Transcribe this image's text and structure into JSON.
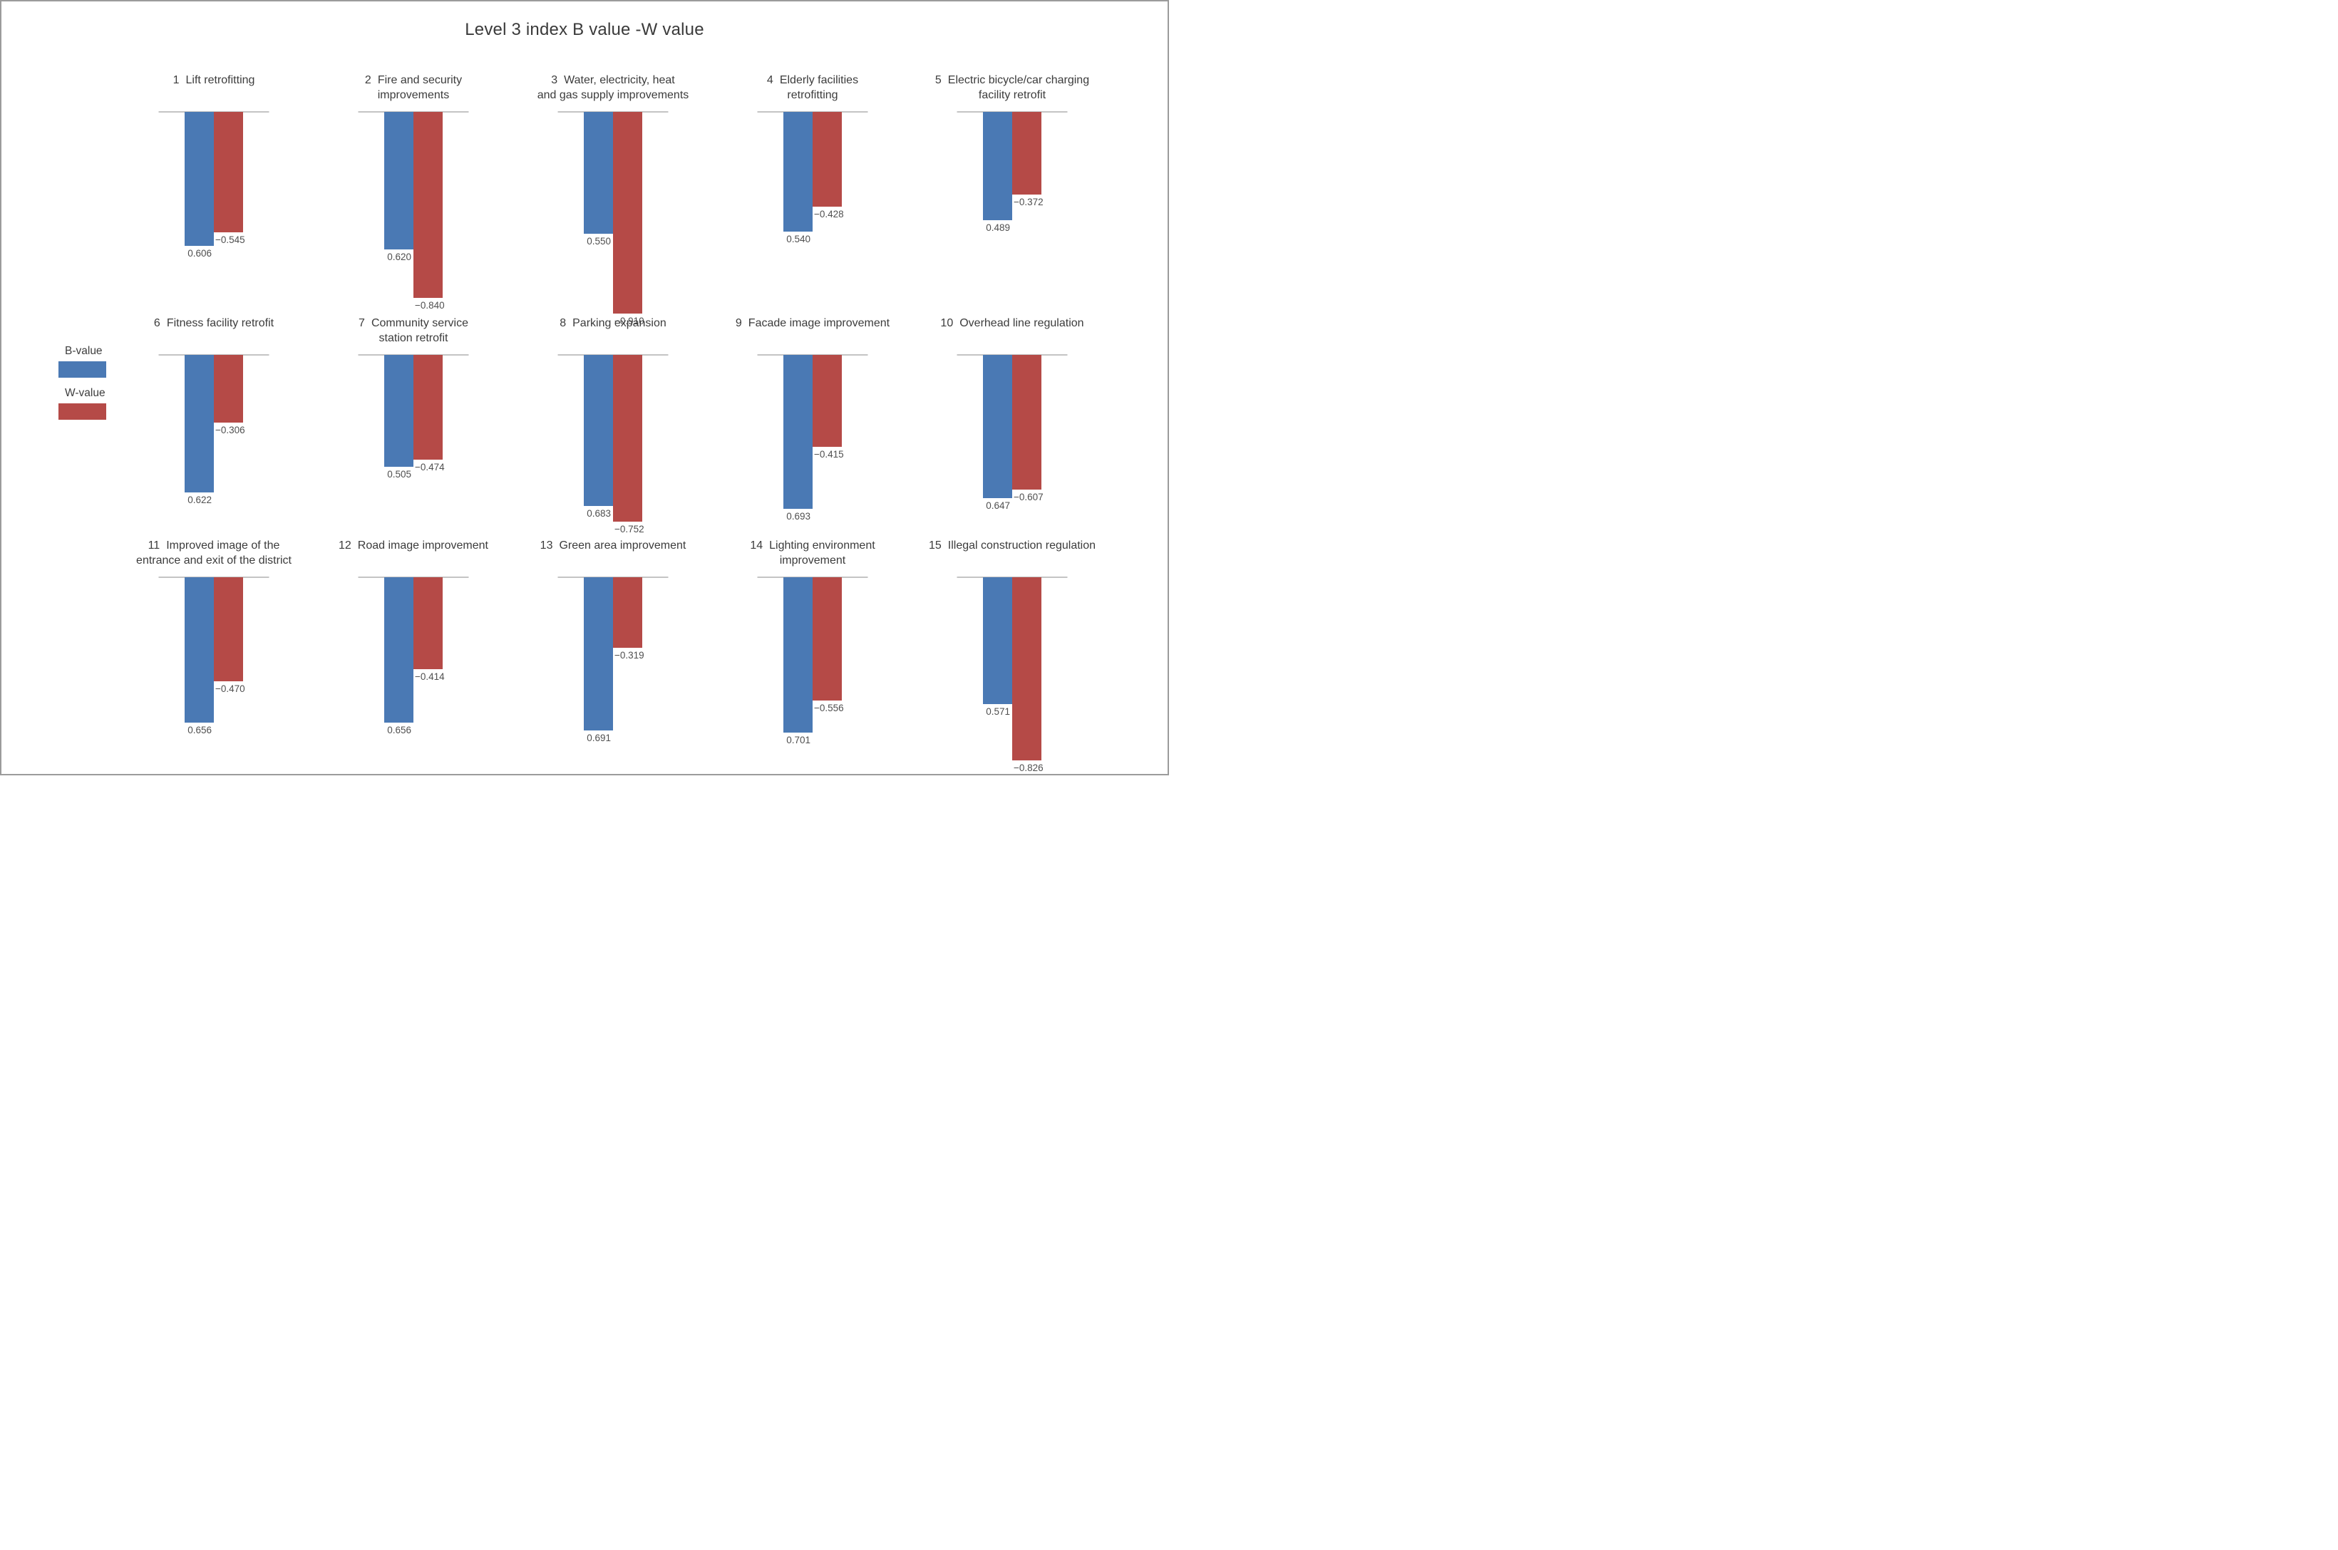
{
  "title": "Level 3 index B value -W value",
  "colors": {
    "b_bar": "#4A79B4",
    "w_bar": "#B54A47",
    "baseline": "#c4c4c4",
    "border": "#9b9b9b",
    "title_text": "#3a3a3a",
    "value_text": "#4f4f4f"
  },
  "legend": {
    "items": [
      {
        "label": "B-value",
        "color": "#4A79B4"
      },
      {
        "label": "W-value",
        "color": "#B54A47"
      }
    ]
  },
  "chart_data": {
    "type": "bar",
    "title": "Level 3 index B value -W value",
    "series": [
      "B-value",
      "W-value"
    ],
    "orientation": "vertical-downward-from-baseline",
    "layout": {
      "rows": 3,
      "cols": 5,
      "baseline_value": 0,
      "grid": false,
      "legend_position": "left-middle"
    },
    "subplots": [
      {
        "num": "1",
        "label": "Lift retrofitting",
        "label_lines": [
          "Lift retrofitting"
        ],
        "b": 0.606,
        "w": -0.545,
        "b_label": "0.606",
        "w_label": "−0.545"
      },
      {
        "num": "2",
        "label": "Fire and security improvements",
        "label_lines": [
          "Fire and security",
          "improvements"
        ],
        "b": 0.62,
        "w": -0.84,
        "b_label": "0.620",
        "w_label": "−0.840"
      },
      {
        "num": "3",
        "label": "Water, electricity, heat and gas supply improvements",
        "label_lines": [
          "Water, electricity, heat",
          "and gas supply improvements"
        ],
        "b": 0.55,
        "w": -0.91,
        "b_label": "0.550",
        "w_label": "−0.910"
      },
      {
        "num": "4",
        "label": "Elderly facilities retrofitting",
        "label_lines": [
          "Elderly facilities",
          "retrofitting"
        ],
        "b": 0.54,
        "w": -0.428,
        "b_label": "0.540",
        "w_label": "−0.428"
      },
      {
        "num": "5",
        "label": "Electric bicycle/car charging facility retrofit",
        "label_lines": [
          "Electric bicycle/car charging",
          "facility retrofit"
        ],
        "b": 0.489,
        "w": -0.372,
        "b_label": "0.489",
        "w_label": "−0.372"
      },
      {
        "num": "6",
        "label": "Fitness facility retrofit",
        "label_lines": [
          "Fitness facility retrofit"
        ],
        "b": 0.622,
        "w": -0.306,
        "b_label": "0.622",
        "w_label": "−0.306"
      },
      {
        "num": "7",
        "label": "Community service station retrofit",
        "label_lines": [
          "Community service",
          "station retrofit"
        ],
        "b": 0.505,
        "w": -0.474,
        "b_label": "0.505",
        "w_label": "−0.474"
      },
      {
        "num": "8",
        "label": "Parking expansion",
        "label_lines": [
          "Parking expansion"
        ],
        "b": 0.683,
        "w": -0.752,
        "b_label": "0.683",
        "w_label": "−0.752"
      },
      {
        "num": "9",
        "label": "Facade image improvement",
        "label_lines": [
          "Facade image improvement"
        ],
        "b": 0.693,
        "w": -0.415,
        "b_label": "0.693",
        "w_label": "−0.415"
      },
      {
        "num": "10",
        "label": "Overhead line regulation",
        "label_lines": [
          "Overhead line regulation"
        ],
        "b": 0.647,
        "w": -0.607,
        "b_label": "0.647",
        "w_label": "−0.607"
      },
      {
        "num": "11",
        "label": "Improved image of the entrance and exit of the district",
        "label_lines": [
          "Improved image of the",
          "entrance and exit of the district"
        ],
        "b": 0.656,
        "w": -0.47,
        "b_label": "0.656",
        "w_label": "−0.470"
      },
      {
        "num": "12",
        "label": "Road image improvement",
        "label_lines": [
          "Road image improvement"
        ],
        "b": 0.656,
        "w": -0.414,
        "b_label": "0.656",
        "w_label": "−0.414"
      },
      {
        "num": "13",
        "label": "Green area improvement",
        "label_lines": [
          "Green area improvement"
        ],
        "b": 0.691,
        "w": -0.319,
        "b_label": "0.691",
        "w_label": "−0.319"
      },
      {
        "num": "14",
        "label": "Lighting environment improvement",
        "label_lines": [
          "Lighting environment",
          "improvement"
        ],
        "b": 0.701,
        "w": -0.556,
        "b_label": "0.701",
        "w_label": "−0.556"
      },
      {
        "num": "15",
        "label": "Illegal construction regulation",
        "label_lines": [
          "Illegal construction regulation"
        ],
        "b": 0.571,
        "w": -0.826,
        "b_label": "0.571",
        "w_label": "−0.826"
      }
    ]
  }
}
